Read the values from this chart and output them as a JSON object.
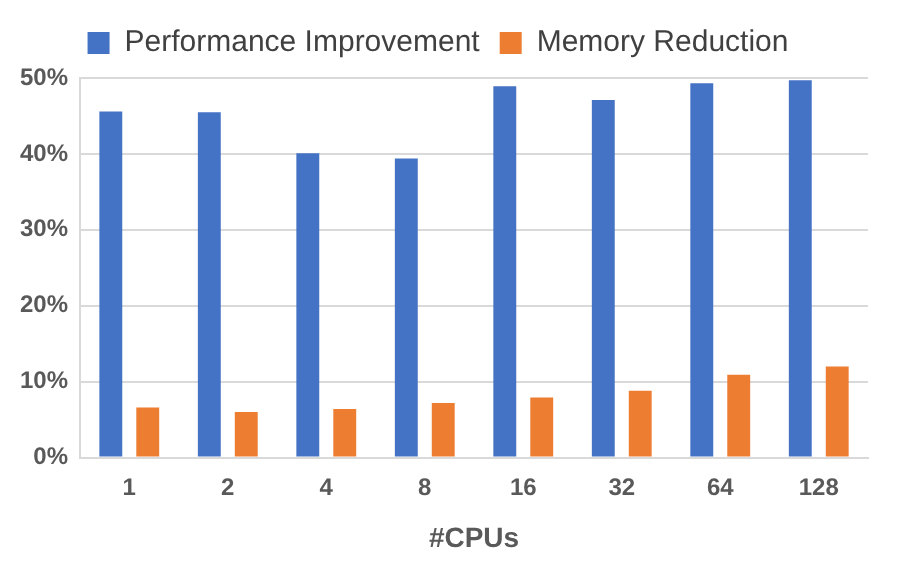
{
  "chart_data": {
    "type": "bar",
    "xlabel": "#CPUs",
    "categories": [
      "1",
      "2",
      "4",
      "8",
      "16",
      "32",
      "64",
      "128"
    ],
    "series": [
      {
        "name": "Performance Improvement",
        "color": "#4472c4",
        "values": [
          45.6,
          45.5,
          40.1,
          39.4,
          48.9,
          47.1,
          49.3,
          49.7
        ]
      },
      {
        "name": "Memory Reduction",
        "color": "#ed7d31",
        "values": [
          6.6,
          6.0,
          6.4,
          7.2,
          7.9,
          8.8,
          10.9,
          12.0
        ]
      }
    ],
    "ylim": [
      0,
      50
    ],
    "yticks": [
      {
        "value": 0,
        "label": "0%"
      },
      {
        "value": 10,
        "label": "10%"
      },
      {
        "value": 20,
        "label": "20%"
      },
      {
        "value": 30,
        "label": "30%"
      },
      {
        "value": 40,
        "label": "40%"
      },
      {
        "value": 50,
        "label": "50%"
      }
    ],
    "grid": "y",
    "legend": "top"
  }
}
